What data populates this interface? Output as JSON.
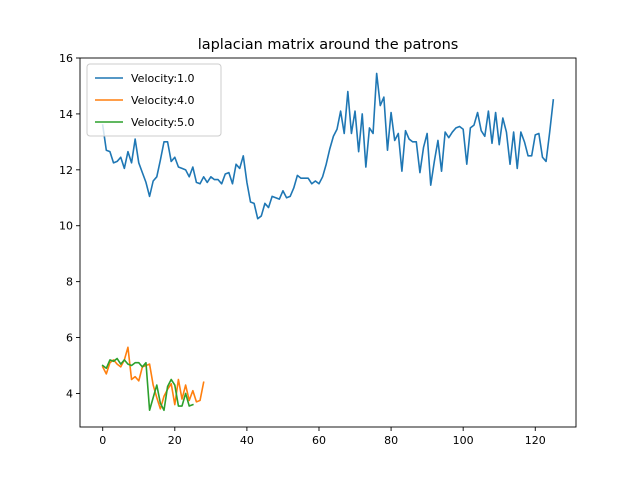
{
  "chart_data": {
    "type": "line",
    "title": "laplacian matrix around the patrons",
    "xlabel": "",
    "ylabel": "",
    "xlim": [
      -6.3,
      131.3
    ],
    "ylim": [
      2.8,
      16.0
    ],
    "x_ticks": [
      0,
      20,
      40,
      60,
      80,
      100,
      120
    ],
    "y_ticks": [
      4,
      6,
      8,
      10,
      12,
      14,
      16
    ],
    "grid": false,
    "legend_position": "upper-left",
    "series": [
      {
        "name": "Velocity:1.0",
        "color": "#1f77b4",
        "values": [
          13.6,
          12.7,
          12.65,
          12.25,
          12.3,
          12.45,
          12.05,
          12.65,
          12.25,
          13.1,
          12.25,
          11.9,
          11.55,
          11.05,
          11.6,
          11.75,
          12.35,
          13.0,
          13.0,
          12.3,
          12.45,
          12.1,
          12.05,
          12.0,
          11.75,
          12.1,
          11.55,
          11.5,
          11.75,
          11.55,
          11.75,
          11.65,
          11.65,
          11.5,
          11.85,
          11.9,
          11.5,
          12.2,
          12.05,
          12.5,
          11.55,
          10.85,
          10.8,
          10.25,
          10.35,
          10.8,
          10.65,
          11.05,
          11.0,
          10.95,
          11.25,
          11.0,
          11.05,
          11.35,
          11.8,
          11.7,
          11.7,
          11.7,
          11.5,
          11.6,
          11.5,
          11.75,
          12.2,
          12.75,
          13.2,
          13.45,
          14.1,
          13.3,
          14.8,
          13.3,
          14.1,
          12.65,
          14.0,
          12.1,
          13.5,
          13.3,
          15.45,
          14.3,
          14.6,
          12.7,
          14.05,
          13.05,
          13.3,
          11.95,
          13.4,
          13.1,
          13.0,
          13.0,
          11.9,
          12.8,
          13.3,
          11.45,
          12.3,
          13.05,
          11.95,
          13.35,
          13.15,
          13.35,
          13.5,
          13.55,
          13.45,
          12.2,
          13.5,
          13.6,
          14.05,
          13.4,
          13.2,
          14.1,
          12.95,
          14.05,
          12.9,
          13.85,
          13.35,
          12.2,
          13.35,
          12.05,
          13.35,
          13.0,
          12.5,
          12.5,
          13.25,
          13.3,
          12.45,
          12.3,
          13.35,
          14.5
        ]
      },
      {
        "name": "Velocity:4.0",
        "color": "#ff7f0e",
        "values": [
          4.95,
          4.7,
          5.1,
          5.2,
          5.05,
          4.95,
          5.2,
          5.65,
          4.5,
          4.6,
          4.45,
          4.95,
          5.0,
          5.05,
          4.3,
          3.85,
          3.45,
          3.9,
          4.15,
          4.35,
          3.6,
          4.5,
          3.8,
          4.3,
          3.75,
          4.1,
          3.7,
          3.75,
          4.4
        ]
      },
      {
        "name": "Velocity:5.0",
        "color": "#2ca02c",
        "values": [
          5.0,
          4.9,
          5.2,
          5.15,
          5.25,
          5.05,
          5.2,
          5.05,
          5.0,
          5.1,
          5.1,
          4.95,
          5.1,
          3.4,
          3.85,
          4.3,
          3.65,
          3.4,
          4.25,
          4.5,
          4.3,
          3.55,
          3.55,
          4.0,
          3.55,
          3.6
        ]
      }
    ]
  }
}
